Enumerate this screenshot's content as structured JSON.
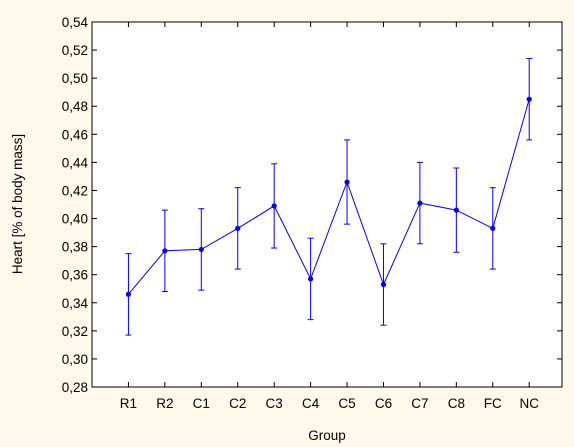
{
  "chart_data": {
    "type": "line",
    "title": "",
    "xlabel": "Group",
    "ylabel": "Heart [% of body mass]",
    "categories": [
      "R1",
      "R2",
      "C1",
      "C2",
      "C3",
      "C4",
      "C5",
      "C6",
      "C7",
      "C8",
      "FC",
      "NC"
    ],
    "ylim": [
      0.28,
      0.54
    ],
    "yticks": [
      "0,28",
      "0,30",
      "0,32",
      "0,34",
      "0,36",
      "0,38",
      "0,40",
      "0,42",
      "0,44",
      "0,46",
      "0,48",
      "0,50",
      "0,52",
      "0,54"
    ],
    "grid": false,
    "series": [
      {
        "values": [
          0.346,
          0.377,
          0.378,
          0.393,
          0.409,
          0.357,
          0.426,
          0.353,
          0.411,
          0.406,
          0.393,
          0.485
        ],
        "lower": [
          0.317,
          0.348,
          0.349,
          0.364,
          0.379,
          0.328,
          0.396,
          0.324,
          0.382,
          0.376,
          0.364,
          0.456
        ],
        "upper": [
          0.375,
          0.406,
          0.407,
          0.422,
          0.439,
          0.386,
          0.456,
          0.382,
          0.44,
          0.436,
          0.422,
          0.514
        ],
        "color": "#0000ff"
      }
    ],
    "background": "#fdf8ea",
    "plot_background": "#ffffff"
  }
}
